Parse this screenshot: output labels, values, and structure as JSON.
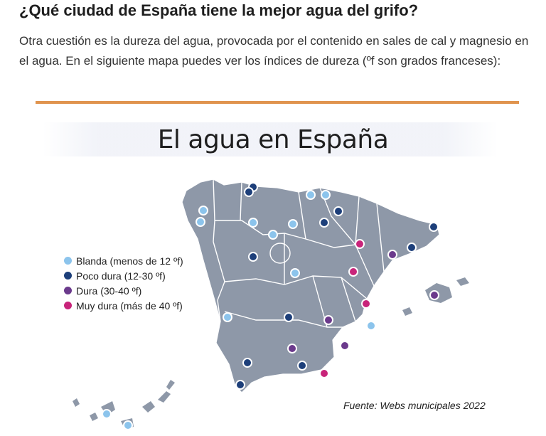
{
  "article": {
    "heading": "¿Qué ciudad de España tiene la mejor agua del grifo?",
    "paragraph": "Otra cuestión es la dureza del agua, provocada por el contenido en sales de cal y magnesio en el agua. En el siguiente mapa puedes ver los índices de dureza (ºf son grados franceses):"
  },
  "map": {
    "title": "El agua en España",
    "source": "Fuente: Webs municipales 2022",
    "legend": [
      {
        "label": "Blanda (menos de 12 ºf)",
        "color": "#8cc4ec",
        "category": "blanda"
      },
      {
        "label": "Poco dura (12-30 ºf)",
        "color": "#1d3f7a",
        "category": "poco-dura"
      },
      {
        "label": "Dura (30-40 ºf)",
        "color": "#6b3a8c",
        "category": "dura"
      },
      {
        "label": "Muy dura (más de 40 ºf)",
        "color": "#c8247a",
        "category": "muy-dura"
      }
    ],
    "colors": {
      "land": "#8e98a8",
      "borders": "#ffffff",
      "accent_rule": "#e0944e"
    }
  }
}
